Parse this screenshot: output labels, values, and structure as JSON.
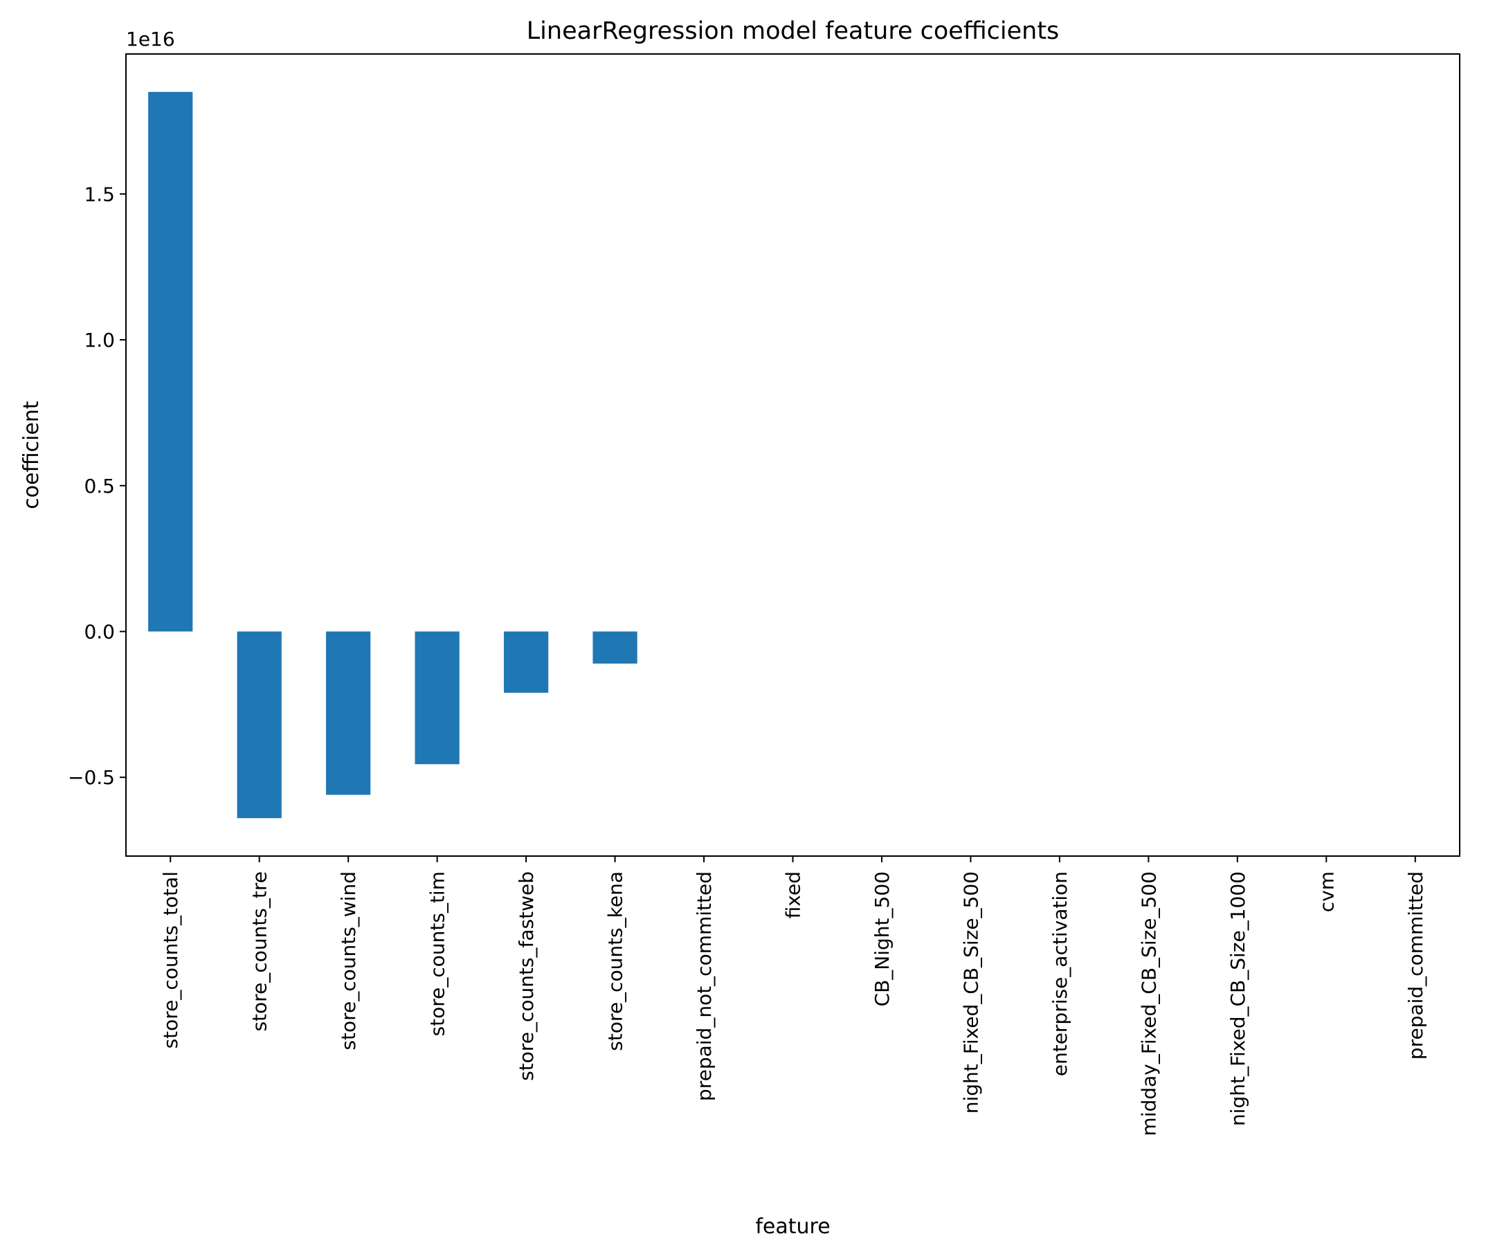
{
  "chart_data": {
    "type": "bar",
    "title": "LinearRegression model feature coefficients",
    "xlabel": "feature",
    "ylabel": "coefficient",
    "y_offset_text": "1e16",
    "y_scale_exponent": 16,
    "categories": [
      "store_counts_total",
      "store_counts_tre",
      "store_counts_wind",
      "store_counts_tim",
      "store_counts_fastweb",
      "store_counts_kena",
      "prepaid_not_committed",
      "fixed",
      "CB_Night_500",
      "night_Fixed_CB_Size_500",
      "enterprise_activation",
      "midday_Fixed_CB_Size_500",
      "night_Fixed_CB_Size_1000",
      "cvm",
      "prepaid_committed"
    ],
    "values": [
      1.85e+16,
      -6400000000000000.0,
      -5600000000000000.0,
      -4550000000000000.0,
      -2100000000000000.0,
      -1100000000000000.0,
      0,
      0,
      0,
      0,
      0,
      0,
      0,
      0,
      0
    ],
    "ylim": [
      -7700000000000000.0,
      1.98e+16
    ],
    "yticks": [
      -5000000000000000.0,
      0,
      5000000000000000.0,
      1e+16,
      1.5e+16
    ],
    "ytick_labels": [
      "−0.5",
      "0.0",
      "0.5",
      "1.0",
      "1.5"
    ],
    "bar_color": "#1f77b4",
    "grid": false,
    "legend": "none"
  }
}
